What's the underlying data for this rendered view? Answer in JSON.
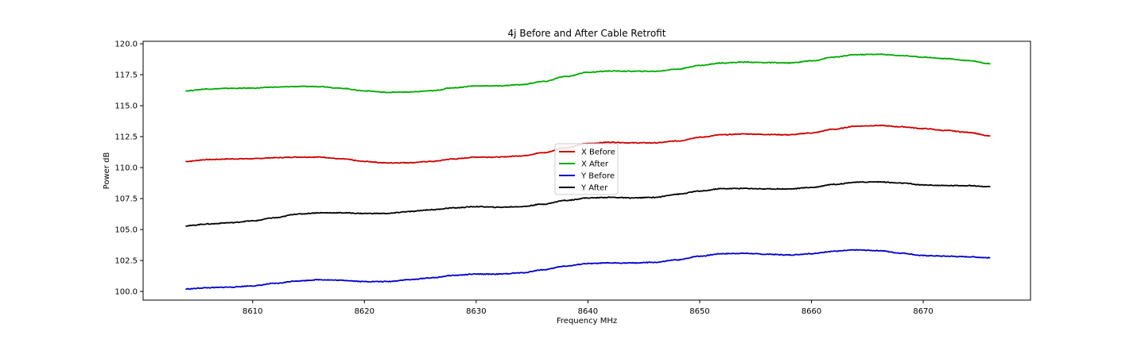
{
  "chart_data": {
    "type": "line",
    "title": "4j Before and After Cable Retrofit",
    "xlabel": "Frequency MHz",
    "ylabel": "Power dB",
    "xlim": [
      8600.2,
      8679.6
    ],
    "ylim": [
      99.3,
      120.2
    ],
    "xticks": [
      8610,
      8620,
      8630,
      8640,
      8650,
      8660,
      8670
    ],
    "yticks": [
      100.0,
      102.5,
      105.0,
      107.5,
      110.0,
      112.5,
      115.0,
      117.5,
      120.0
    ],
    "grid": false,
    "legend_position": "center",
    "x": [
      8604,
      8606,
      8608,
      8610,
      8612,
      8614,
      8616,
      8618,
      8620,
      8622,
      8624,
      8626,
      8628,
      8630,
      8632,
      8634,
      8636,
      8638,
      8640,
      8642,
      8644,
      8646,
      8648,
      8650,
      8652,
      8654,
      8656,
      8658,
      8660,
      8662,
      8664,
      8666,
      8668,
      8670,
      8672,
      8674,
      8676
    ],
    "series": [
      {
        "name": "X Before",
        "color": "#cc0000",
        "values": [
          110.5,
          110.65,
          110.7,
          110.72,
          110.8,
          110.85,
          110.85,
          110.7,
          110.5,
          110.38,
          110.4,
          110.5,
          110.7,
          110.85,
          110.85,
          110.95,
          111.2,
          111.6,
          111.95,
          112.05,
          112.0,
          112.0,
          112.15,
          112.45,
          112.65,
          112.72,
          112.68,
          112.65,
          112.8,
          113.1,
          113.35,
          113.4,
          113.3,
          113.15,
          113.0,
          112.85,
          112.55
        ]
      },
      {
        "name": "X After",
        "color": "#00aa00",
        "values": [
          116.2,
          116.35,
          116.4,
          116.42,
          116.5,
          116.55,
          116.55,
          116.4,
          116.2,
          116.08,
          116.1,
          116.2,
          116.45,
          116.6,
          116.6,
          116.7,
          116.95,
          117.35,
          117.7,
          117.8,
          117.78,
          117.78,
          117.95,
          118.25,
          118.45,
          118.52,
          118.48,
          118.45,
          118.62,
          118.92,
          119.12,
          119.15,
          119.05,
          118.92,
          118.8,
          118.65,
          118.4
        ]
      },
      {
        "name": "Y Before",
        "color": "#0000cc",
        "values": [
          100.2,
          100.3,
          100.35,
          100.45,
          100.65,
          100.85,
          100.95,
          100.9,
          100.8,
          100.8,
          100.95,
          101.1,
          101.3,
          101.4,
          101.4,
          101.5,
          101.75,
          102.05,
          102.25,
          102.3,
          102.3,
          102.35,
          102.55,
          102.85,
          103.05,
          103.08,
          103.0,
          102.95,
          103.05,
          103.25,
          103.35,
          103.3,
          103.1,
          102.9,
          102.85,
          102.8,
          102.72
        ]
      },
      {
        "name": "Y After",
        "color": "#000000",
        "values": [
          105.3,
          105.45,
          105.55,
          105.7,
          105.95,
          106.25,
          106.35,
          106.35,
          106.3,
          106.3,
          106.45,
          106.6,
          106.75,
          106.85,
          106.8,
          106.85,
          107.05,
          107.35,
          107.55,
          107.6,
          107.55,
          107.6,
          107.85,
          108.1,
          108.3,
          108.32,
          108.28,
          108.28,
          108.4,
          108.65,
          108.82,
          108.85,
          108.75,
          108.6,
          108.55,
          108.55,
          108.45
        ]
      }
    ]
  }
}
